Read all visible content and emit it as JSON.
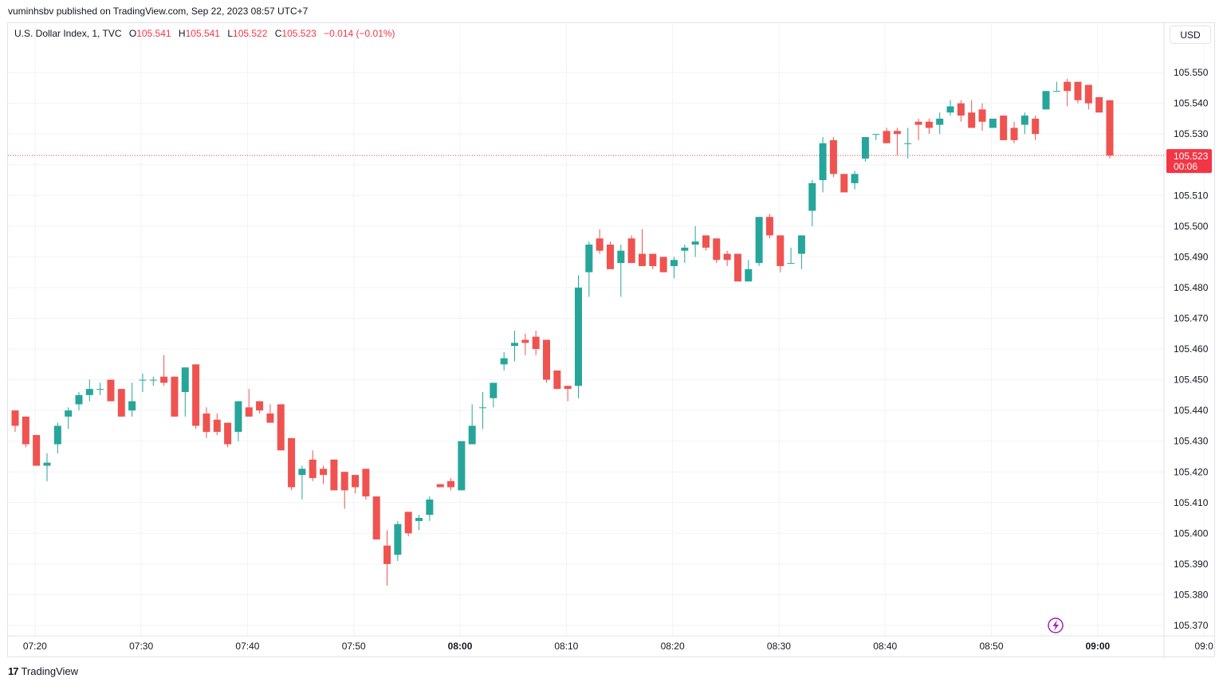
{
  "header": {
    "published_line": "vuminhsbv published on TradingView.com, Sep 22, 2023 08:57 UTC+7"
  },
  "legend": {
    "symbol": "U.S. Dollar Index, 1, TVC",
    "o_label": "O",
    "o_value": "105.541",
    "h_label": "H",
    "h_value": "105.541",
    "l_label": "L",
    "l_value": "105.522",
    "c_label": "C",
    "c_value": "105.523",
    "change": "−0.014 (−0.01%)"
  },
  "currency_button": "USD",
  "price_label": {
    "price": "105.523",
    "countdown": "00:06"
  },
  "footer": {
    "brand": "TradingView",
    "logo_glyph": "17"
  },
  "colors": {
    "up": "#26a69a",
    "down": "#ef5350",
    "grid": "#f0f3fa",
    "last_price_line": "#f23645",
    "lightning": "#9c27b0"
  },
  "icons": {
    "lightning": "lightning-icon",
    "logo": "tradingview-logo-icon"
  },
  "chart_data": {
    "type": "candlestick",
    "ylim": [
      105.365,
      105.557
    ],
    "y_ticks": [
      "105.370",
      "105.380",
      "105.390",
      "105.400",
      "105.410",
      "105.420",
      "105.430",
      "105.440",
      "105.450",
      "105.460",
      "105.470",
      "105.480",
      "105.490",
      "105.500",
      "105.510",
      "105.520",
      "105.530",
      "105.540",
      "105.550"
    ],
    "x_ticks": [
      {
        "label": "07:20",
        "bold": false
      },
      {
        "label": "07:30",
        "bold": false
      },
      {
        "label": "07:40",
        "bold": false
      },
      {
        "label": "07:50",
        "bold": false
      },
      {
        "label": "08:00",
        "bold": true
      },
      {
        "label": "08:10",
        "bold": false
      },
      {
        "label": "08:20",
        "bold": false
      },
      {
        "label": "08:30",
        "bold": false
      },
      {
        "label": "08:40",
        "bold": false
      },
      {
        "label": "08:50",
        "bold": false
      },
      {
        "label": "09:00",
        "bold": true
      },
      {
        "label": "09:0",
        "bold": false
      }
    ],
    "first_bar_time": "07:19",
    "last_price": 105.523,
    "candles": [
      [
        105.44,
        105.44,
        105.433,
        105.435
      ],
      [
        105.438,
        105.438,
        105.428,
        105.429
      ],
      [
        105.432,
        105.432,
        105.422,
        105.422
      ],
      [
        105.422,
        105.426,
        105.417,
        105.423
      ],
      [
        105.429,
        105.436,
        105.426,
        105.435
      ],
      [
        105.438,
        105.441,
        105.434,
        105.44
      ],
      [
        105.442,
        105.446,
        105.44,
        105.445
      ],
      [
        105.445,
        105.45,
        105.443,
        105.447
      ],
      [
        105.447,
        105.449,
        105.445,
        105.447
      ],
      [
        105.45,
        105.45,
        105.443,
        105.443
      ],
      [
        105.447,
        105.447,
        105.438,
        105.438
      ],
      [
        105.44,
        105.449,
        105.438,
        105.443
      ],
      [
        105.45,
        105.452,
        105.446,
        105.45
      ],
      [
        105.45,
        105.451,
        105.448,
        105.45
      ],
      [
        105.451,
        105.458,
        105.448,
        105.449
      ],
      [
        105.451,
        105.451,
        105.438,
        105.438
      ],
      [
        105.446,
        105.454,
        105.438,
        105.454
      ],
      [
        105.455,
        105.455,
        105.434,
        105.435
      ],
      [
        105.439,
        105.441,
        105.431,
        105.433
      ],
      [
        105.437,
        105.439,
        105.432,
        105.433
      ],
      [
        105.436,
        105.436,
        105.428,
        105.429
      ],
      [
        105.433,
        105.443,
        105.43,
        105.443
      ],
      [
        105.441,
        105.447,
        105.438,
        105.438
      ],
      [
        105.443,
        105.443,
        105.439,
        105.44
      ],
      [
        105.439,
        105.442,
        105.436,
        105.436
      ],
      [
        105.442,
        105.442,
        105.427,
        105.427
      ],
      [
        105.431,
        105.431,
        105.414,
        105.415
      ],
      [
        105.419,
        105.422,
        105.411,
        105.421
      ],
      [
        105.424,
        105.427,
        105.417,
        105.418
      ],
      [
        105.421,
        105.422,
        105.416,
        105.419
      ],
      [
        105.424,
        105.424,
        105.414,
        105.414
      ],
      [
        105.42,
        105.42,
        105.408,
        105.414
      ],
      [
        105.419,
        105.419,
        105.413,
        105.415
      ],
      [
        105.421,
        105.421,
        105.411,
        105.412
      ],
      [
        105.412,
        105.412,
        105.398,
        105.398
      ],
      [
        105.396,
        105.401,
        105.383,
        105.39
      ],
      [
        105.393,
        105.404,
        105.391,
        105.403
      ],
      [
        105.407,
        105.407,
        105.399,
        105.4
      ],
      [
        105.404,
        105.406,
        105.401,
        105.405
      ],
      [
        105.406,
        105.412,
        105.404,
        105.411
      ],
      [
        105.416,
        105.416,
        105.415,
        105.415
      ],
      [
        105.417,
        105.418,
        105.414,
        105.415
      ],
      [
        105.414,
        105.43,
        105.414,
        105.43
      ],
      [
        105.429,
        105.442,
        105.429,
        105.435
      ],
      [
        105.441,
        105.446,
        105.434,
        105.441
      ],
      [
        105.444,
        105.448,
        105.441,
        105.449
      ],
      [
        105.455,
        105.459,
        105.453,
        105.457
      ],
      [
        105.461,
        105.466,
        105.456,
        105.462
      ],
      [
        105.463,
        105.465,
        105.458,
        105.462
      ],
      [
        105.464,
        105.466,
        105.458,
        105.46
      ],
      [
        105.463,
        105.463,
        105.449,
        105.45
      ],
      [
        105.453,
        105.453,
        105.447,
        105.447
      ],
      [
        105.448,
        105.448,
        105.443,
        105.447
      ],
      [
        105.448,
        105.484,
        105.444,
        105.48
      ],
      [
        105.485,
        105.495,
        105.477,
        105.494
      ],
      [
        105.496,
        105.499,
        105.491,
        105.492
      ],
      [
        105.494,
        105.495,
        105.486,
        105.486
      ],
      [
        105.488,
        105.494,
        105.477,
        105.492
      ],
      [
        105.496,
        105.497,
        105.488,
        105.488
      ],
      [
        105.491,
        105.499,
        105.487,
        105.487
      ],
      [
        105.491,
        105.491,
        105.486,
        105.487
      ],
      [
        105.49,
        105.49,
        105.486,
        105.485
      ],
      [
        105.487,
        105.49,
        105.483,
        105.489
      ],
      [
        105.492,
        105.494,
        105.488,
        105.493
      ],
      [
        105.494,
        105.5,
        105.49,
        105.495
      ],
      [
        105.497,
        105.497,
        105.492,
        105.493
      ],
      [
        105.496,
        105.496,
        105.488,
        105.489
      ],
      [
        105.491,
        105.492,
        105.487,
        105.489
      ],
      [
        105.491,
        105.491,
        105.482,
        105.482
      ],
      [
        105.482,
        105.489,
        105.482,
        105.486
      ],
      [
        105.488,
        105.503,
        105.487,
        105.503
      ],
      [
        105.503,
        105.504,
        105.496,
        105.497
      ],
      [
        105.497,
        105.497,
        105.485,
        105.487
      ],
      [
        105.488,
        105.493,
        105.488,
        105.488
      ],
      [
        105.491,
        105.497,
        105.486,
        105.497
      ],
      [
        105.505,
        105.515,
        105.5,
        105.514
      ],
      [
        105.515,
        105.529,
        105.511,
        105.527
      ],
      [
        105.528,
        105.529,
        105.516,
        105.517
      ],
      [
        105.517,
        105.517,
        105.511,
        105.511
      ],
      [
        105.514,
        105.518,
        105.512,
        105.517
      ],
      [
        105.522,
        105.529,
        105.521,
        105.529
      ],
      [
        105.53,
        105.53,
        105.528,
        105.53
      ],
      [
        105.531,
        105.532,
        105.527,
        105.527
      ],
      [
        105.531,
        105.532,
        105.523,
        105.53
      ],
      [
        105.527,
        105.532,
        105.522,
        105.527
      ],
      [
        105.534,
        105.535,
        105.528,
        105.533
      ],
      [
        105.534,
        105.535,
        105.53,
        105.532
      ],
      [
        105.533,
        105.537,
        105.53,
        105.535
      ],
      [
        105.537,
        105.541,
        105.536,
        105.539
      ],
      [
        105.54,
        105.541,
        105.534,
        105.536
      ],
      [
        105.537,
        105.541,
        105.532,
        105.532
      ],
      [
        105.538,
        105.54,
        105.531,
        105.534
      ],
      [
        105.532,
        105.534,
        105.533,
        105.535
      ],
      [
        105.536,
        105.536,
        105.528,
        105.528
      ],
      [
        105.532,
        105.534,
        105.527,
        105.528
      ],
      [
        105.533,
        105.537,
        105.53,
        105.536
      ],
      [
        105.535,
        105.536,
        105.528,
        105.53
      ],
      [
        105.538,
        105.544,
        105.538,
        105.544
      ],
      [
        105.544,
        105.547,
        105.544,
        105.544
      ],
      [
        105.547,
        105.548,
        105.539,
        105.544
      ],
      [
        105.547,
        105.547,
        105.54,
        105.541
      ],
      [
        105.546,
        105.546,
        105.538,
        105.54
      ],
      [
        105.542,
        105.542,
        105.537,
        105.537
      ],
      [
        105.541,
        105.541,
        105.522,
        105.523
      ]
    ]
  }
}
